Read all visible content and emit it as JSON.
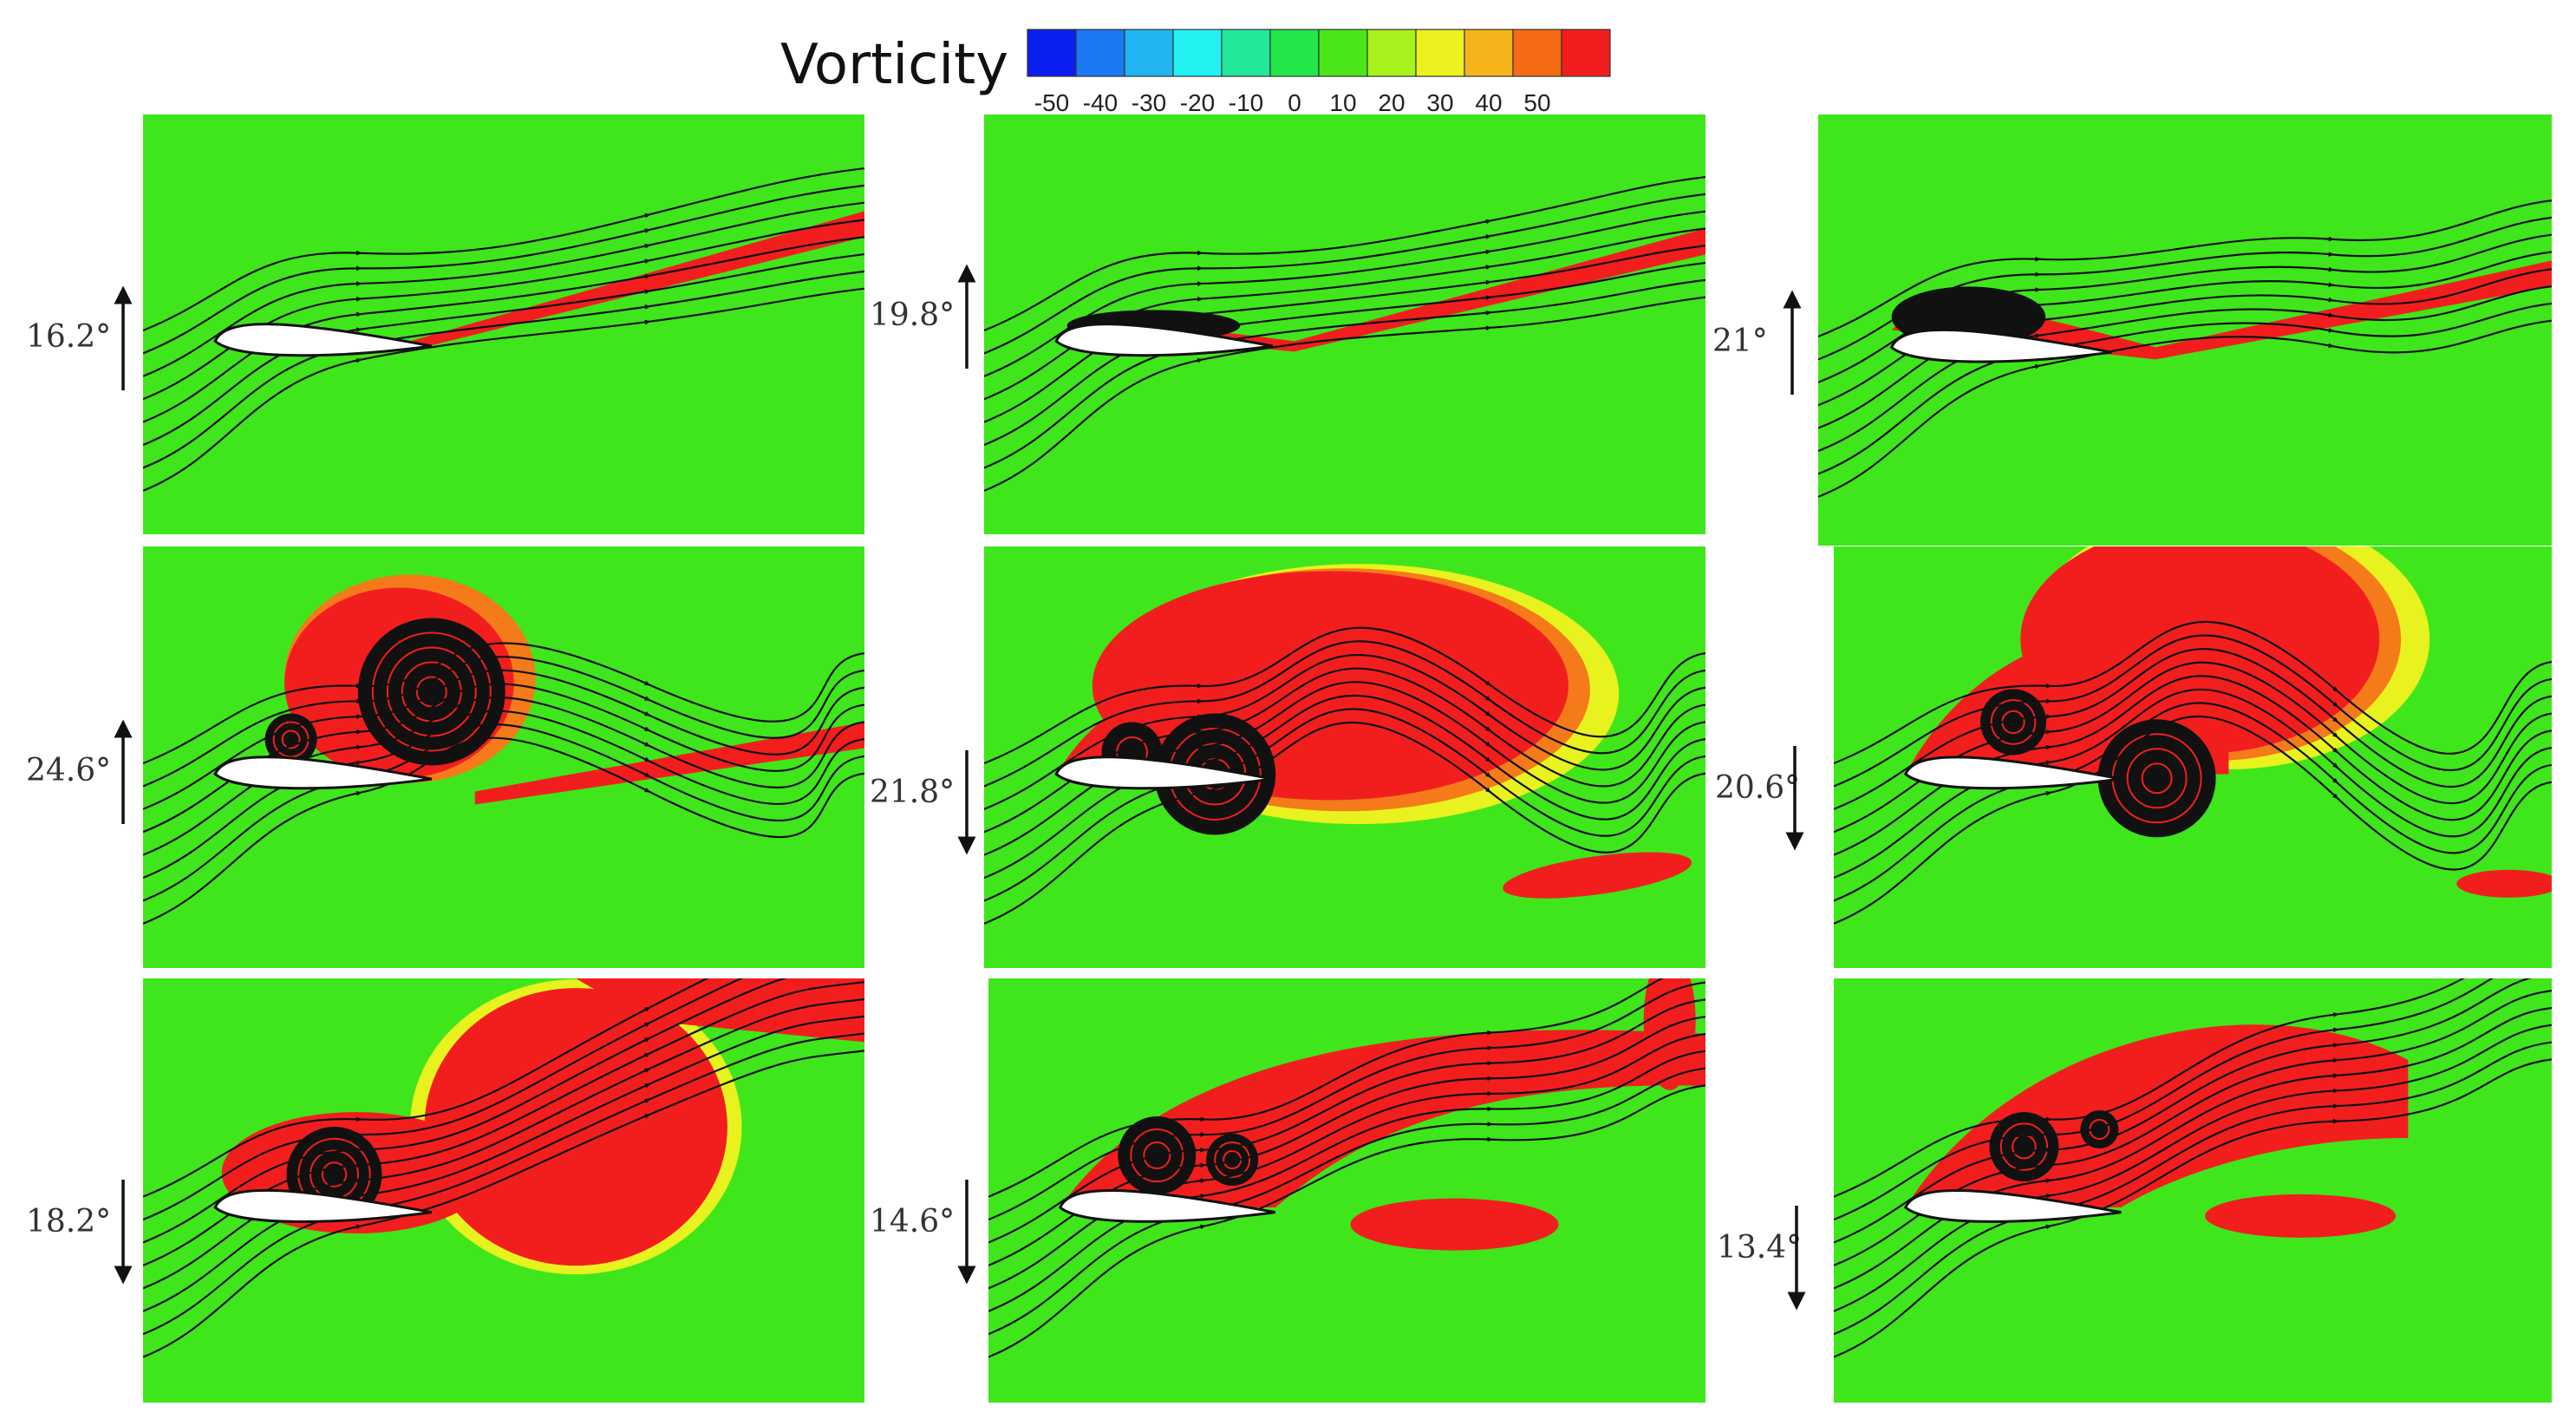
{
  "colorbar": {
    "title": "Vorticity",
    "ticks": [
      "-50",
      "-40",
      "-30",
      "-20",
      "-10",
      "0",
      "10",
      "20",
      "30",
      "40",
      "50"
    ],
    "colors": [
      "#0a1ef0",
      "#1a78f2",
      "#22b4f2",
      "#22f2f2",
      "#22e89a",
      "#22e64a",
      "#4ae61a",
      "#a8f21e",
      "#ecf21e",
      "#f5b41a",
      "#f56a14",
      "#f21e1e"
    ]
  },
  "colors": {
    "background": "#3fe61c",
    "positive_vorticity": "#f21e1e",
    "orange": "#f57a1a",
    "yellow": "#e8f21e",
    "airfoil": "#ffffff",
    "streamline": "#111111"
  },
  "panels": [
    {
      "angle": "16.2°",
      "direction": "up",
      "stage": 0
    },
    {
      "angle": "19.8°",
      "direction": "up",
      "stage": 1
    },
    {
      "angle": "21°",
      "direction": "up",
      "stage": 2
    },
    {
      "angle": "24.6°",
      "direction": "up",
      "stage": 3
    },
    {
      "angle": "21.8°",
      "direction": "down",
      "stage": 4
    },
    {
      "angle": "20.6°",
      "direction": "down",
      "stage": 5
    },
    {
      "angle": "18.2°",
      "direction": "down",
      "stage": 6
    },
    {
      "angle": "14.6°",
      "direction": "down",
      "stage": 7
    },
    {
      "angle": "13.4°",
      "direction": "down",
      "stage": 8
    }
  ]
}
